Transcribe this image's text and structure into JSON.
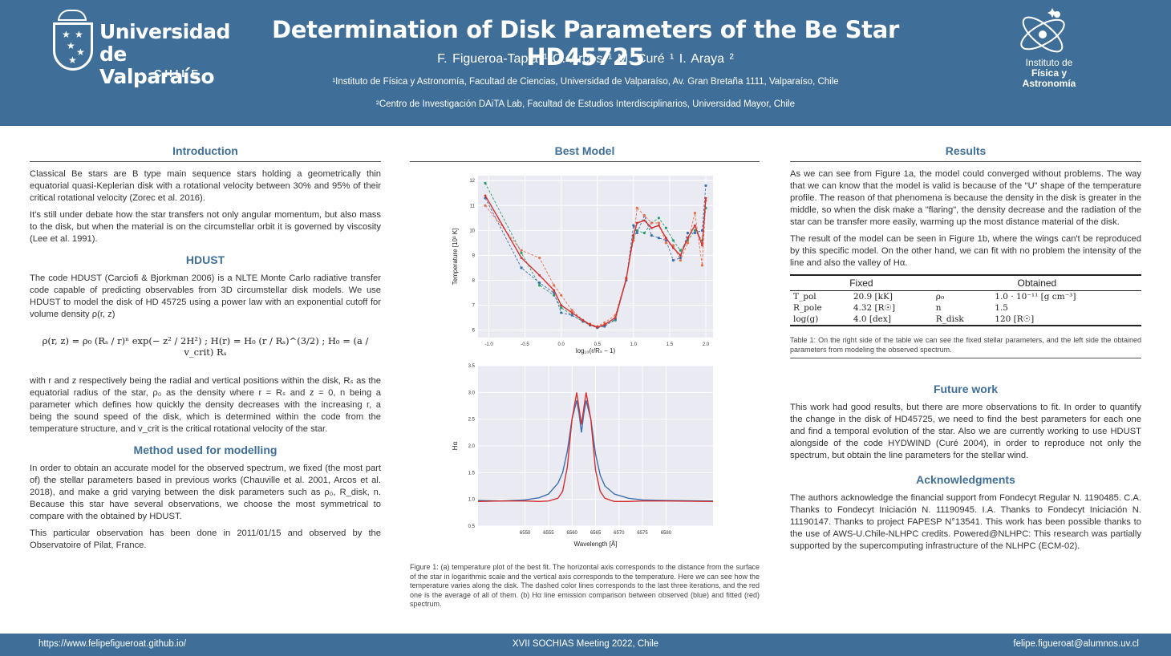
{
  "header": {
    "university_name": "Universidad de Valparaíso",
    "university_line1": "Universidad",
    "university_line2": "de Valparaíso",
    "university_country": "CHILE",
    "title": "Determination of Disk Parameters of the Be Star HD45725",
    "authors": "F. Figueroa-Tapia ¹   C. Arcos ¹   M. Curé ¹   I. Araya ²",
    "affiliation1": "¹Instituto de Física y Astronomía, Facultad de Ciencias, Universidad de Valparaíso, Av. Gran Bretaña 1111, Valparaíso, Chile",
    "affiliation2": "²Centro de Investigación DAiTA Lab, Facultad de Estudios Interdisciplinarios, Universidad Mayor, Chile",
    "institute_line1": "Instituto de",
    "institute_line2": "Física y",
    "institute_line3": "Astronomía"
  },
  "introduction": {
    "title": "Introduction",
    "p1": "Classical Be stars are B type main sequence stars holding a geometrically thin equatorial quasi-Keplerian disk with a rotational velocity between 30% and 95% of their critical rotational velocity (Zorec et al. 2016).",
    "p2": "It's still under debate how the star transfers not only angular momentum, but also mass to the disk, but when the material is on the circumstellar orbit it is governed by viscosity (Lee et al. 1991)."
  },
  "hdust": {
    "title": "HDUST",
    "p1": "The code HDUST (Carciofi & Bjorkman 2006) is a NLTE Monte Carlo radiative transfer code capable of predicting observables from 3D circumstellar disk models. We use HDUST to model the disk of HD 45725 using a power law with an exponential cutoff for volume density ρ(r, z)",
    "equation": "ρ(r, z) = ρ₀ (Rₛ / r)ⁿ exp(− z² / 2H²)   ;   H(r) = H₀ (r / Rₛ)^(3/2)   ;   H₀ = (a / v_crit) Rₛ",
    "p2": "with r and z respectively being the radial and vertical positions within the disk, Rₛ as the equatorial radius of the star, ρ₀ as the density where r = Rₛ and z = 0, n being a parameter which defines how quickly the density decreases with the increasing r, a being the sound speed of the disk, which is determined within the code from the temperature structure, and v_crit is the critical rotational velocity of the star."
  },
  "method": {
    "title": "Method used for modelling",
    "p1": "In order to obtain an accurate model for the observed spectrum, we fixed (the most part of) the stellar parameters based in previous works (Chauville et al. 2001, Arcos et al. 2018), and make a grid varying between the disk parameters such as ρ₀, R_disk, n. Because this star have several observations, we choose the most symmetrical to compare with the obtained by HDUST.",
    "p2": "This particular observation has been done in 2011/01/15 and observed by the Observatoire of Pilat, France."
  },
  "best_model": {
    "title": "Best Model",
    "caption": "Figure 1: (a) temperature plot of the best fit. The horizontal axis corresponds to the distance from the surface of the star in logarithmic scale and the vertical axis corresponds to the temperature. Here we can see how the temperature varies along the disk. The dashed color lines corresponds to the last three iterations, and the red one is the average of all of them. (b) Hα line emission comparison between observed (blue) and fitted (red) spectrum."
  },
  "chart_data": [
    {
      "type": "line",
      "xlabel": "log₁₀(r/Rₛ − 1)",
      "ylabel": "Temperature [10³ K]",
      "xlim": [
        -1.15,
        2.1
      ],
      "ylim": [
        5.7,
        12.2
      ],
      "xticks": [
        -1.0,
        -0.5,
        0.0,
        0.5,
        1.0,
        1.5,
        2.0
      ],
      "yticks": [
        6,
        7,
        8,
        9,
        10,
        11,
        12
      ],
      "series": [
        {
          "style": "dashed",
          "color": "#2a9c6a",
          "x": [
            -1.05,
            -0.55,
            -0.3,
            -0.1,
            0.0,
            0.15,
            0.3,
            0.4,
            0.5,
            0.6,
            0.75,
            0.9,
            1.0,
            1.05,
            1.15,
            1.25,
            1.35,
            1.45,
            1.55,
            1.65,
            1.75,
            1.85,
            1.95,
            2.0
          ],
          "y": [
            11.9,
            9.1,
            7.8,
            7.4,
            6.9,
            6.6,
            6.35,
            6.2,
            6.1,
            6.2,
            6.4,
            8.1,
            9.7,
            10.0,
            9.9,
            10.3,
            10.5,
            10.1,
            9.6,
            9.2,
            9.6,
            10.0,
            9.6,
            10.9
          ]
        },
        {
          "style": "dashed",
          "color": "#3a6fb0",
          "x": [
            -1.05,
            -0.55,
            -0.3,
            -0.1,
            0.0,
            0.15,
            0.3,
            0.4,
            0.5,
            0.6,
            0.75,
            0.9,
            1.0,
            1.05,
            1.15,
            1.25,
            1.35,
            1.45,
            1.55,
            1.65,
            1.75,
            1.85,
            1.95,
            2.0
          ],
          "y": [
            11.3,
            8.5,
            7.9,
            7.5,
            6.7,
            6.6,
            6.35,
            6.2,
            6.1,
            6.15,
            6.45,
            8.0,
            10.2,
            9.9,
            10.6,
            9.8,
            9.7,
            9.6,
            8.8,
            8.9,
            9.9,
            9.9,
            10.0,
            11.8
          ]
        },
        {
          "style": "dashed",
          "color": "#e8704a",
          "x": [
            -1.05,
            -0.55,
            -0.3,
            -0.1,
            0.0,
            0.15,
            0.3,
            0.4,
            0.5,
            0.6,
            0.75,
            0.9,
            1.0,
            1.05,
            1.15,
            1.25,
            1.35,
            1.45,
            1.55,
            1.65,
            1.75,
            1.85,
            1.95,
            2.0
          ],
          "y": [
            11.0,
            9.2,
            8.9,
            7.8,
            7.4,
            6.8,
            6.4,
            6.25,
            6.15,
            6.3,
            6.6,
            8.1,
            9.6,
            10.9,
            10.6,
            10.3,
            10.3,
            9.5,
            9.4,
            8.8,
            9.5,
            10.7,
            8.6,
            11.2
          ]
        },
        {
          "style": "solid",
          "color": "#d62f2f",
          "x": [
            -1.05,
            -0.55,
            -0.3,
            -0.1,
            0.0,
            0.15,
            0.3,
            0.4,
            0.5,
            0.6,
            0.75,
            0.9,
            1.0,
            1.05,
            1.15,
            1.25,
            1.35,
            1.45,
            1.55,
            1.65,
            1.75,
            1.85,
            1.95,
            2.0
          ],
          "y": [
            11.4,
            8.9,
            8.2,
            7.6,
            7.0,
            6.7,
            6.4,
            6.22,
            6.12,
            6.22,
            6.5,
            8.05,
            9.8,
            10.3,
            10.4,
            10.1,
            10.2,
            9.7,
            9.3,
            9.0,
            9.7,
            10.2,
            9.4,
            11.3
          ]
        }
      ]
    },
    {
      "type": "line",
      "xlabel": "Wavelength [Å]",
      "ylabel": "Hα",
      "xlim": [
        6540,
        6590
      ],
      "ylim": [
        0.5,
        3.5
      ],
      "xticks": [
        6550,
        6555,
        6560,
        6565,
        6570,
        6575,
        6580
      ],
      "yticks": [
        0.5,
        1.0,
        1.5,
        2.0,
        2.5,
        3.0,
        3.5
      ],
      "series": [
        {
          "color": "#3a6fb0",
          "x": [
            6540,
            6545,
            6550,
            6553,
            6555,
            6557,
            6558,
            6559,
            6560,
            6561,
            6561.5,
            6562,
            6562.5,
            6563,
            6564,
            6565,
            6566,
            6567,
            6569,
            6572,
            6575,
            6580,
            6590
          ],
          "y": [
            0.98,
            0.97,
            0.99,
            1.03,
            1.1,
            1.3,
            1.5,
            1.9,
            2.5,
            2.85,
            2.6,
            2.25,
            2.6,
            2.85,
            2.5,
            1.85,
            1.45,
            1.25,
            1.1,
            1.02,
            0.99,
            0.98,
            0.97
          ]
        },
        {
          "color": "#d62f2f",
          "x": [
            6540,
            6545,
            6550,
            6553,
            6555,
            6557,
            6558,
            6559,
            6560,
            6561,
            6561.5,
            6562,
            6562.5,
            6563,
            6564,
            6565,
            6566,
            6567,
            6569,
            6572,
            6575,
            6580,
            6590
          ],
          "y": [
            0.96,
            0.97,
            0.97,
            0.96,
            0.97,
            1.02,
            1.15,
            1.6,
            2.5,
            3.0,
            2.7,
            2.4,
            2.7,
            3.0,
            2.5,
            1.55,
            1.15,
            1.02,
            0.96,
            0.96,
            0.97,
            0.97,
            0.96
          ]
        }
      ]
    }
  ],
  "results": {
    "title": "Results",
    "p1": "As we can see from Figure 1a, the model could converged without problems. The way that we can know that the model is valid is because of the \"U\" shape of the temperature profile. The reason of that phenomena is because the density in the disk is greater in the middle, so when the disk make a \"flaring\", the density decrease and the radiation of the star can be transfer more easily, warming up the most distance material of the disk.",
    "p2": "The result of the model can be seen in Figure 1b, where the wings can't be reproduced by this specific model. On the other hand, we can fit with no problem the intensity of the line and also the valley of Hα.",
    "table": {
      "col_fixed": "Fixed",
      "col_obtained": "Obtained",
      "rows": [
        {
          "p1": "T_pol",
          "v1": "20.9 [kK]",
          "p2": "ρ₀",
          "v2": "1.0 · 10⁻¹¹ [g cm⁻³]"
        },
        {
          "p1": "R_pole",
          "v1": "4.32 [R☉]",
          "p2": "n",
          "v2": "1.5"
        },
        {
          "p1": "log(g)",
          "v1": "4.0 [dex]",
          "p2": "R_disk",
          "v2": "120 [R☉]"
        }
      ],
      "caption": "Table 1: On the right side of the table we can see the fixed stellar parameters, and the left side the obtained parameters from modeling the observed spectrum."
    }
  },
  "future": {
    "title": "Future work",
    "p1": "This work had good results, but there are more observations to fit. In order to quantify the change in the disk of HD45725, we need to find the best parameters for each one and find a temporal evolution of the star. Also we are currently working to use HDUST alongside of the code HYDWIND (Curé 2004), in order to reproduce not only the spectrum, but obtain the line parameters for the stellar wind."
  },
  "ack": {
    "title": "Acknowledgments",
    "p1": "The authors acknowledge the financial support from Fondecyt Regular N. 1190485. C.A. Thanks to Fondecyt Iniciación N. 11190945. I.A. Thanks to Fondecyt Iniciación N. 11190147. Thanks to project FAPESP N°13541. This work has been possible thanks to the use of AWS-U.Chile-NLHPC credits. Powered@NLHPC: This research was partially supported by the supercomputing infrastructure of the NLHPC (ECM-02)."
  },
  "footer": {
    "website": "https://www.felipefigueroat.github.io/",
    "meeting": "XVII SOCHIAS Meeting 2022, Chile",
    "email": "felipe.figueroat@alumnos.uv.cl"
  }
}
